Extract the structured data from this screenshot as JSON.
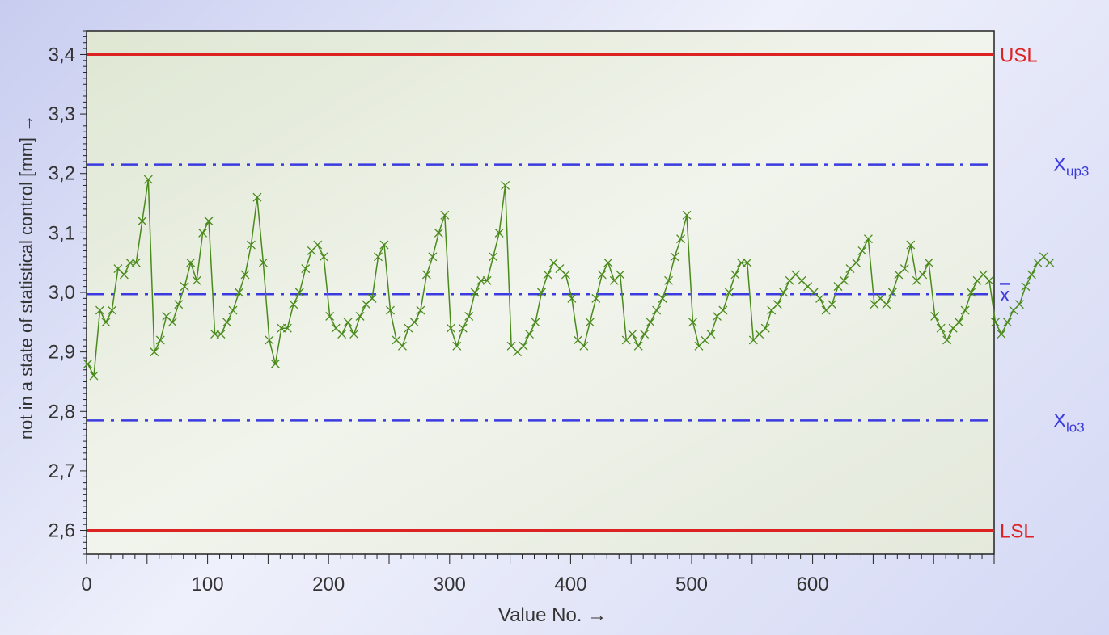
{
  "chart_data": {
    "type": "line",
    "title": "",
    "xlabel": "Value No. →",
    "ylabel": "not in a state of statistical control [mm] →",
    "xlim": [
      0,
      750
    ],
    "ylim": [
      2.56,
      3.44
    ],
    "x_ticks": [
      0,
      100,
      200,
      300,
      400,
      500,
      600
    ],
    "x_tick_labels": [
      "0",
      "100",
      "200",
      "300",
      "400",
      "500",
      "600"
    ],
    "y_ticks": [
      2.6,
      2.7,
      2.8,
      2.9,
      3.0,
      3.1,
      3.2,
      3.3,
      3.4
    ],
    "y_tick_labels": [
      "2,6",
      "2,7",
      "2,8",
      "2,9",
      "3,0",
      "3,1",
      "3,2",
      "3,3",
      "3,4"
    ],
    "grid": false,
    "reference_lines": [
      {
        "name": "USL",
        "label": "USL",
        "value": 3.4,
        "style": "solid",
        "color": "#dd2222"
      },
      {
        "name": "Xup3",
        "label": "X",
        "sub": "up3",
        "value": 3.215,
        "style": "dashdot",
        "color": "#3a3ae0"
      },
      {
        "name": "xbar",
        "label": "x",
        "overline": true,
        "value": 2.997,
        "style": "dashdot",
        "color": "#3a3ae0"
      },
      {
        "name": "Xlo3",
        "label": "X",
        "sub": "lo3",
        "value": 2.785,
        "style": "dashdot",
        "color": "#3a3ae0"
      },
      {
        "name": "LSL",
        "label": "LSL",
        "value": 2.6,
        "style": "solid",
        "color": "#dd2222"
      }
    ],
    "series_style": {
      "color": "#4a8a1c",
      "marker": "x"
    },
    "series": [
      {
        "x_start": 1,
        "x_step": 5,
        "values": [
          2.88,
          2.86,
          2.97,
          2.95,
          2.97,
          3.04,
          3.03,
          3.05,
          3.05,
          3.12,
          3.19,
          2.9,
          2.92,
          2.96,
          2.95,
          2.98,
          3.01,
          3.05,
          3.02,
          3.1,
          3.12,
          2.93,
          2.93,
          2.95,
          2.97,
          3.0,
          3.03,
          3.08,
          3.16,
          3.05,
          2.92,
          2.88,
          2.94,
          2.94,
          2.98,
          3.0,
          3.04,
          3.07,
          3.08,
          3.06,
          2.96,
          2.94,
          2.93,
          2.95,
          2.93,
          2.96,
          2.98,
          2.99,
          3.06,
          3.08,
          2.97,
          2.92,
          2.91,
          2.94,
          2.95,
          2.97,
          3.03,
          3.06,
          3.1,
          3.13,
          2.94,
          2.91,
          2.94,
          2.96,
          3.0,
          3.02,
          3.02,
          3.06,
          3.1,
          3.18,
          2.91,
          2.9,
          2.91,
          2.93,
          2.95,
          3.0,
          3.03,
          3.05,
          3.04,
          3.03,
          2.99,
          2.92,
          2.91,
          2.95,
          2.99,
          3.03,
          3.05,
          3.02,
          3.03,
          2.92,
          2.93,
          2.91,
          2.93,
          2.95,
          2.97,
          2.99,
          3.02,
          3.06,
          3.09,
          3.13,
          2.95,
          2.91,
          2.92,
          2.93,
          2.96,
          2.97,
          3.0,
          3.03,
          3.05,
          3.05,
          2.92,
          2.93,
          2.94,
          2.97,
          2.98,
          3.0,
          3.02,
          3.03,
          3.02,
          3.01,
          3.0,
          2.99,
          2.97,
          2.98,
          3.01,
          3.02,
          3.04,
          3.05,
          3.07,
          3.09,
          2.98,
          2.99,
          2.98,
          3.0,
          3.03,
          3.04,
          3.08,
          3.02,
          3.03,
          3.05,
          2.96,
          2.94,
          2.92,
          2.94,
          2.95,
          2.97,
          3.0,
          3.02,
          3.03,
          3.02,
          2.95,
          2.93,
          2.95,
          2.97,
          2.98,
          3.01,
          3.03,
          3.05,
          3.06,
          3.05
        ]
      }
    ]
  }
}
